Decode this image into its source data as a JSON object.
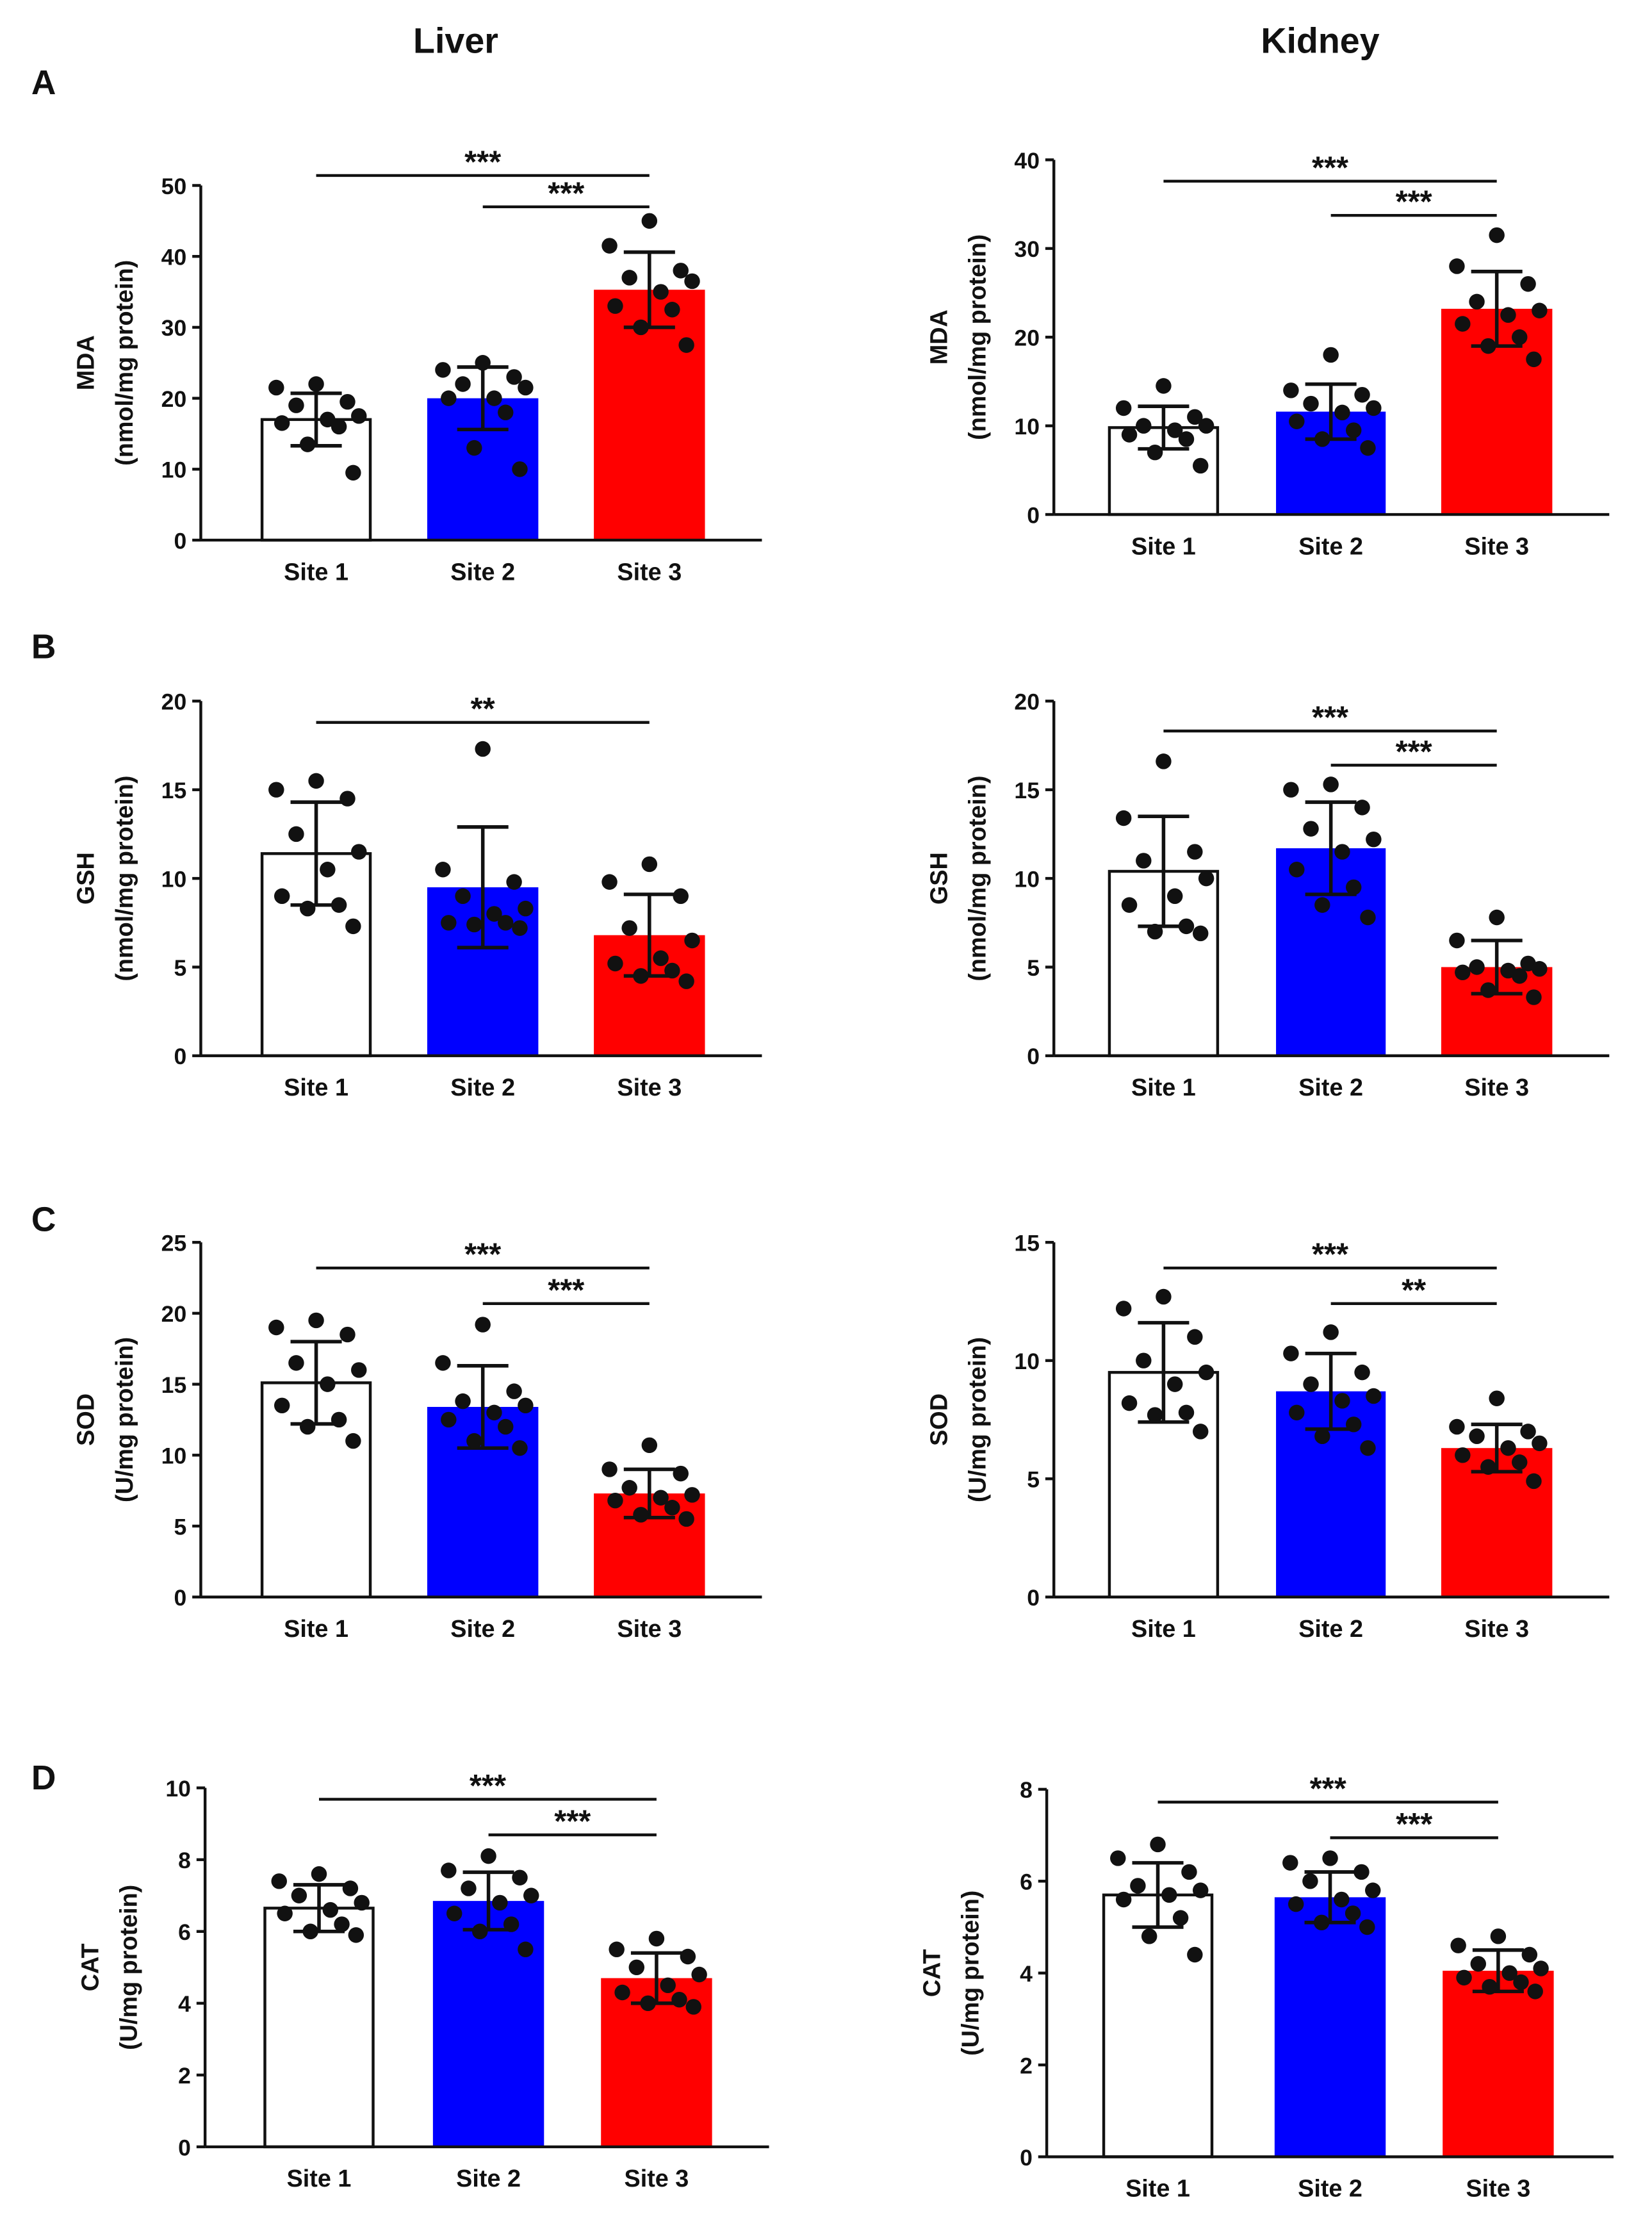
{
  "column_titles": [
    "Liver",
    "Kidney"
  ],
  "row_labels": [
    "A",
    "B",
    "C",
    "D"
  ],
  "colors": {
    "site1": "#ffffff",
    "site2": "#0000ff",
    "site3": "#ff0000",
    "ink": "#111111"
  },
  "chart_data": [
    {
      "type": "bar",
      "panel": "A",
      "tissue": "Liver",
      "ylabel": [
        "MDA",
        "(nmol/mg protein)"
      ],
      "categories": [
        "Site 1",
        "Site 2",
        "Site 3"
      ],
      "ylim": [
        0,
        50
      ],
      "yticks": [
        0,
        10,
        20,
        30,
        40,
        50
      ],
      "means": [
        17,
        20,
        35.3
      ],
      "sd": [
        3.7,
        4.4,
        5.3
      ],
      "points": [
        [
          22,
          21.5,
          19.5,
          19,
          17.5,
          17,
          16.5,
          16,
          13.5,
          9.5
        ],
        [
          25,
          24,
          23,
          22,
          21.5,
          20,
          20,
          18,
          13,
          10
        ],
        [
          45,
          41.5,
          38,
          37,
          36.5,
          35,
          33,
          32.5,
          30,
          27.5
        ]
      ],
      "significance": [
        {
          "from": "Site 1",
          "to": "Site 3",
          "label": "***"
        },
        {
          "from": "Site 2",
          "to": "Site 3",
          "label": "***"
        }
      ]
    },
    {
      "type": "bar",
      "panel": "A",
      "tissue": "Kidney",
      "ylabel": [
        "MDA",
        "(nmol/mg protein)"
      ],
      "categories": [
        "Site 1",
        "Site 2",
        "Site 3"
      ],
      "ylim": [
        0,
        40
      ],
      "yticks": [
        0,
        10,
        20,
        30,
        40
      ],
      "means": [
        9.8,
        11.6,
        23.2
      ],
      "sd": [
        2.4,
        3.1,
        4.2
      ],
      "points": [
        [
          14.5,
          12,
          11,
          10,
          10,
          9.5,
          9,
          8.5,
          7,
          5.5
        ],
        [
          18,
          14,
          13.5,
          12.5,
          12,
          11.5,
          10.5,
          9.5,
          8.5,
          7.5
        ],
        [
          31.5,
          28,
          26,
          24,
          23,
          22.5,
          21.5,
          20,
          19,
          17.5
        ]
      ],
      "significance": [
        {
          "from": "Site 1",
          "to": "Site 3",
          "label": "***"
        },
        {
          "from": "Site 2",
          "to": "Site 3",
          "label": "***"
        }
      ]
    },
    {
      "type": "bar",
      "panel": "B",
      "tissue": "Liver",
      "ylabel": [
        "GSH",
        "(nmol/mg protein)"
      ],
      "categories": [
        "Site 1",
        "Site 2",
        "Site 3"
      ],
      "ylim": [
        0,
        20
      ],
      "yticks": [
        0,
        5,
        10,
        15,
        20
      ],
      "means": [
        11.4,
        9.5,
        6.8
      ],
      "sd": [
        2.9,
        3.4,
        2.3
      ],
      "points": [
        [
          15.5,
          15,
          14.5,
          12.5,
          11.5,
          10.5,
          9,
          8.5,
          8.3,
          7.3
        ],
        [
          17.3,
          10.5,
          9.8,
          9,
          8.3,
          8,
          7.5,
          7.5,
          7.4,
          7.2
        ],
        [
          10.8,
          9.8,
          9,
          7.2,
          6.5,
          5.5,
          5.2,
          4.8,
          4.5,
          4.2
        ]
      ],
      "significance": [
        {
          "from": "Site 1",
          "to": "Site 3",
          "label": "**"
        }
      ]
    },
    {
      "type": "bar",
      "panel": "B",
      "tissue": "Kidney",
      "ylabel": [
        "GSH",
        "(nmol/mg protein)"
      ],
      "categories": [
        "Site 1",
        "Site 2",
        "Site 3"
      ],
      "ylim": [
        0,
        20
      ],
      "yticks": [
        0,
        5,
        10,
        15,
        20
      ],
      "means": [
        10.4,
        11.7,
        5
      ],
      "sd": [
        3.1,
        2.6,
        1.5
      ],
      "points": [
        [
          16.6,
          13.4,
          11.5,
          11,
          10,
          9,
          8.5,
          7.3,
          7,
          6.9
        ],
        [
          15.3,
          15,
          14,
          12.8,
          12.2,
          11.5,
          10.5,
          9.5,
          8.5,
          7.8
        ],
        [
          7.8,
          6.5,
          5.2,
          5,
          4.9,
          4.8,
          4.7,
          4.5,
          3.7,
          3.3
        ]
      ],
      "significance": [
        {
          "from": "Site 1",
          "to": "Site 3",
          "label": "***"
        },
        {
          "from": "Site 2",
          "to": "Site 3",
          "label": "***"
        }
      ]
    },
    {
      "type": "bar",
      "panel": "C",
      "tissue": "Liver",
      "ylabel": [
        "SOD",
        "(U/mg protein)"
      ],
      "categories": [
        "Site 1",
        "Site 2",
        "Site 3"
      ],
      "ylim": [
        0,
        25
      ],
      "yticks": [
        0,
        5,
        10,
        15,
        20,
        25
      ],
      "means": [
        15.1,
        13.4,
        7.3
      ],
      "sd": [
        2.9,
        2.9,
        1.7
      ],
      "points": [
        [
          19.5,
          19,
          18.5,
          16.5,
          16,
          15,
          13.5,
          12.5,
          12,
          11
        ],
        [
          19.2,
          16.5,
          14.5,
          13.8,
          13.5,
          13,
          12.5,
          12,
          11,
          10.5
        ],
        [
          10.7,
          9,
          8.7,
          7.7,
          7.2,
          7,
          6.8,
          6.3,
          5.8,
          5.5
        ]
      ],
      "significance": [
        {
          "from": "Site 1",
          "to": "Site 3",
          "label": "***"
        },
        {
          "from": "Site 2",
          "to": "Site 3",
          "label": "***"
        }
      ]
    },
    {
      "type": "bar",
      "panel": "C",
      "tissue": "Kidney",
      "ylabel": [
        "SOD",
        "(U/mg protein)"
      ],
      "categories": [
        "Site 1",
        "Site 2",
        "Site 3"
      ],
      "ylim": [
        0,
        15
      ],
      "yticks": [
        0,
        5,
        10,
        15
      ],
      "means": [
        9.5,
        8.7,
        6.3
      ],
      "sd": [
        2.1,
        1.6,
        1.0
      ],
      "points": [
        [
          12.7,
          12.2,
          11,
          10,
          9.5,
          9,
          8.2,
          7.8,
          7.7,
          7
        ],
        [
          11.2,
          10.3,
          9.5,
          9,
          8.5,
          8.3,
          7.8,
          7.3,
          6.8,
          6.3
        ],
        [
          8.4,
          7.2,
          7,
          6.8,
          6.5,
          6.3,
          6,
          5.7,
          5.5,
          4.9
        ]
      ],
      "significance": [
        {
          "from": "Site 1",
          "to": "Site 3",
          "label": "***"
        },
        {
          "from": "Site 2",
          "to": "Site 3",
          "label": "**"
        }
      ]
    },
    {
      "type": "bar",
      "panel": "D",
      "tissue": "Liver",
      "ylabel": [
        "CAT",
        "(U/mg protein)"
      ],
      "categories": [
        "Site 1",
        "Site 2",
        "Site 3"
      ],
      "ylim": [
        0,
        10
      ],
      "yticks": [
        0,
        2,
        4,
        6,
        8,
        10
      ],
      "means": [
        6.65,
        6.85,
        4.7
      ],
      "sd": [
        0.65,
        0.8,
        0.7
      ],
      "points": [
        [
          7.6,
          7.4,
          7.2,
          7,
          6.8,
          6.6,
          6.5,
          6.2,
          6,
          5.9
        ],
        [
          8.1,
          7.7,
          7.5,
          7.2,
          7,
          6.8,
          6.5,
          6.2,
          6,
          5.5
        ],
        [
          5.8,
          5.5,
          5.3,
          5,
          4.8,
          4.5,
          4.3,
          4.1,
          4,
          3.9
        ]
      ],
      "significance": [
        {
          "from": "Site 1",
          "to": "Site 3",
          "label": "***"
        },
        {
          "from": "Site 2",
          "to": "Site 3",
          "label": "***"
        }
      ]
    },
    {
      "type": "bar",
      "panel": "D",
      "tissue": "Kidney",
      "ylabel": [
        "CAT",
        "(U/mg protein)"
      ],
      "categories": [
        "Site 1",
        "Site 2",
        "Site 3"
      ],
      "ylim": [
        0,
        8
      ],
      "yticks": [
        0,
        2,
        4,
        6,
        8
      ],
      "means": [
        5.7,
        5.65,
        4.05
      ],
      "sd": [
        0.7,
        0.55,
        0.45
      ],
      "points": [
        [
          6.8,
          6.5,
          6.2,
          5.9,
          5.8,
          5.7,
          5.6,
          5.2,
          4.8,
          4.4
        ],
        [
          6.5,
          6.4,
          6.2,
          6.0,
          5.8,
          5.6,
          5.5,
          5.3,
          5.1,
          5.0
        ],
        [
          4.8,
          4.6,
          4.4,
          4.2,
          4.1,
          4,
          3.9,
          3.8,
          3.7,
          3.6
        ]
      ],
      "significance": [
        {
          "from": "Site 1",
          "to": "Site 3",
          "label": "***"
        },
        {
          "from": "Site 2",
          "to": "Site 3",
          "label": "***"
        }
      ]
    }
  ]
}
